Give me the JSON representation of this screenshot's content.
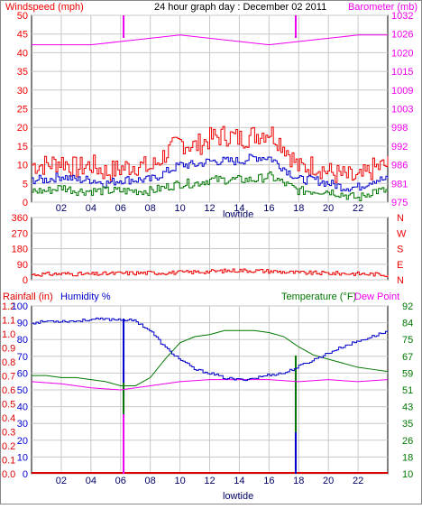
{
  "colors": {
    "wind": "#ee0000",
    "gust": "#0000cc",
    "avg": "#007700",
    "baro": "#ee00ee",
    "humidity": "#0000cc",
    "temp": "#007700",
    "dew": "#ee00ee",
    "rain": "#dd0000",
    "tide": "#ee00ee",
    "grid": "#c8c8c8",
    "frame": "#000000"
  },
  "chart_data": [
    {
      "type": "line",
      "title": "24 hour graph day : December 02 2011",
      "left_label": "Windspeed (mph)",
      "right_label": "Barometer (mb)",
      "x_ticks": [
        "02",
        "04",
        "06",
        "08",
        "10",
        "12",
        "14",
        "16",
        "18",
        "20",
        "22"
      ],
      "x_tick_hours": [
        2,
        4,
        6,
        8,
        10,
        12,
        14,
        16,
        18,
        20,
        22
      ],
      "x_range": [
        0,
        24
      ],
      "x_annotation": "lowtide",
      "y_left_ticks": [
        "0",
        "5",
        "10",
        "15",
        "20",
        "25",
        "30",
        "35",
        "40",
        "45",
        "50"
      ],
      "y_left_range": [
        0,
        50
      ],
      "y_right_ticks": [
        "975",
        "981",
        "986",
        "992",
        "998",
        "1003",
        "1009",
        "1015",
        "1020",
        "1026",
        "1032"
      ],
      "y_right_range": [
        975,
        1032
      ],
      "markers_hours": [
        6.2,
        17.8
      ],
      "series": [
        {
          "key": "gust",
          "x": [
            0,
            1,
            2,
            3,
            4,
            5,
            6,
            7,
            8,
            9,
            10,
            11,
            12,
            13,
            14,
            15,
            16,
            17,
            18,
            19,
            20,
            21,
            22,
            23,
            24
          ],
          "y": [
            10,
            10,
            11,
            9,
            10,
            8,
            9,
            10,
            9,
            13,
            16,
            15,
            17,
            18,
            17,
            18,
            19,
            15,
            9,
            10,
            8,
            7,
            6,
            9,
            10
          ]
        },
        {
          "key": "avg",
          "x": [
            0,
            1,
            2,
            3,
            4,
            5,
            6,
            7,
            8,
            9,
            10,
            11,
            12,
            13,
            14,
            15,
            16,
            17,
            18,
            19,
            20,
            21,
            22,
            23,
            24
          ],
          "y": [
            6,
            6,
            7,
            6,
            6,
            5,
            6,
            6,
            6,
            8,
            10,
            10,
            11,
            11,
            11,
            12,
            12,
            9,
            6,
            6,
            5,
            4,
            4,
            6,
            6
          ]
        },
        {
          "key": "min",
          "x": [
            0,
            1,
            2,
            3,
            4,
            5,
            6,
            7,
            8,
            9,
            10,
            11,
            12,
            13,
            14,
            15,
            16,
            17,
            18,
            19,
            20,
            21,
            22,
            23,
            24
          ],
          "y": [
            3,
            3,
            4,
            3,
            3,
            3,
            3,
            3,
            3,
            4,
            5,
            5,
            6,
            6,
            6,
            6,
            7,
            5,
            3,
            3,
            3,
            2,
            1,
            3,
            3
          ]
        },
        {
          "key": "baro",
          "x": [
            0,
            2,
            4,
            6,
            8,
            10,
            12,
            14,
            16,
            18,
            20,
            22,
            24
          ],
          "y": [
            1023,
            1023,
            1023,
            1024,
            1025,
            1026,
            1025,
            1024,
            1023,
            1024,
            1025,
            1026,
            1026
          ]
        }
      ]
    },
    {
      "type": "line",
      "title": "",
      "x_range": [
        0,
        24
      ],
      "y_ticks": [
        "0",
        "90",
        "180",
        "270",
        "360"
      ],
      "y_range": [
        0,
        360
      ],
      "right_labels": [
        "N",
        "W",
        "S",
        "E",
        "N"
      ],
      "series": [
        {
          "key": "direction",
          "x": [
            0,
            2,
            4,
            6,
            8,
            10,
            12,
            14,
            16,
            18,
            20,
            22,
            24
          ],
          "y": [
            30,
            35,
            32,
            38,
            40,
            42,
            48,
            55,
            50,
            40,
            38,
            35,
            30
          ]
        }
      ]
    },
    {
      "type": "line",
      "title": "",
      "rain_label": "Rainfall (in)",
      "humidity_label": "Humidity %",
      "temp_label": "Temperature (°F)",
      "dew_label": "Dew Point",
      "x_ticks": [
        "02",
        "04",
        "06",
        "08",
        "10",
        "12",
        "14",
        "16",
        "18",
        "20",
        "22"
      ],
      "x_tick_hours": [
        2,
        4,
        6,
        8,
        10,
        12,
        14,
        16,
        18,
        20,
        22
      ],
      "x_range": [
        0,
        24
      ],
      "x_annotation": "lowtide",
      "y_rain_ticks": [
        "0.0",
        "0.1",
        "0.2",
        "0.3",
        "0.4",
        "0.5",
        "0.6",
        "0.7",
        "0.8",
        "0.9",
        "1.0",
        "1.1",
        "1.2"
      ],
      "y_rain_range": [
        0,
        1.2
      ],
      "y_humidity_ticks": [
        "0",
        "10",
        "20",
        "30",
        "40",
        "50",
        "60",
        "70",
        "80",
        "90",
        "100"
      ],
      "y_humidity_range": [
        0,
        100
      ],
      "y_temp_ticks": [
        "10",
        "18",
        "26",
        "35",
        "43",
        "51",
        "59",
        "67",
        "75",
        "84",
        "92"
      ],
      "y_temp_range": [
        10,
        92
      ],
      "markers_hours": [
        6.2,
        17.8
      ],
      "series": [
        {
          "key": "humidity",
          "x": [
            0,
            0.3,
            1,
            2,
            3,
            4,
            5,
            6,
            7,
            8,
            9,
            10,
            11,
            12,
            13,
            14,
            15,
            16,
            17,
            18,
            19,
            20,
            21,
            22,
            23,
            24
          ],
          "y": [
            90,
            90,
            91,
            91,
            91,
            92,
            92,
            92,
            91,
            85,
            75,
            68,
            62,
            60,
            57,
            56,
            57,
            59,
            60,
            64,
            68,
            72,
            76,
            79,
            82,
            85
          ]
        },
        {
          "key": "temp",
          "x": [
            0,
            1,
            2,
            3,
            4,
            5,
            6,
            7,
            8,
            9,
            10,
            11,
            12,
            13,
            14,
            15,
            16,
            17,
            18,
            19,
            20,
            21,
            22,
            23,
            24
          ],
          "y": [
            58,
            58,
            57,
            57,
            56,
            55,
            53,
            53,
            57,
            66,
            74,
            77,
            78,
            80,
            80,
            80,
            79,
            77,
            72,
            68,
            66,
            64,
            62,
            61,
            60
          ]
        },
        {
          "key": "dew",
          "x": [
            0,
            2,
            4,
            6,
            8,
            10,
            12,
            14,
            16,
            18,
            20,
            22,
            24
          ],
          "y": [
            55,
            54,
            52,
            51,
            53,
            55,
            56,
            56,
            56,
            55,
            56,
            55,
            56
          ]
        },
        {
          "key": "rain",
          "x": [
            0,
            24
          ],
          "y": [
            0,
            0
          ]
        }
      ]
    }
  ]
}
